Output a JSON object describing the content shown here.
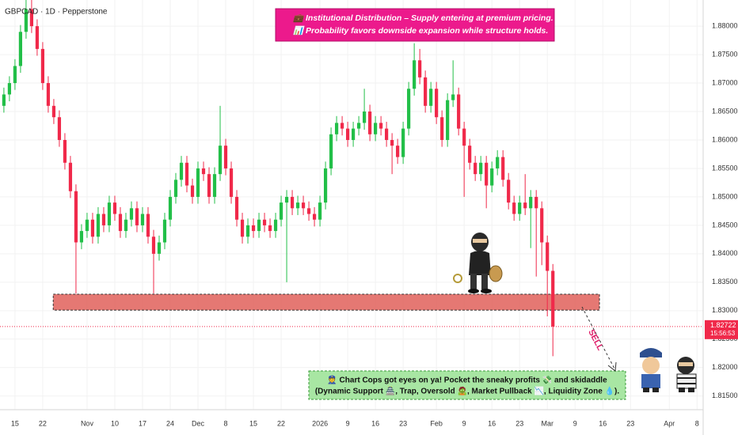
{
  "chart_data": {
    "type": "candlestick",
    "title": "GBPCAD · 1D · Pepperstone",
    "banner": [
      "💼 Institutional Distribution – Supply entering at premium pricing.",
      "📊 Probability favors downside expansion while structure holds."
    ],
    "note": [
      "👮 Chart Cops got eyes on ya! Pocket the sneaky profits 💸 and skidaddle",
      "(Dynamic Support 🏯, Trap, Oversold 🧟, Market Pullback 📉, Liquidity Zone 💧)."
    ],
    "sell_label": "SELL",
    "up_color": "#22bf48",
    "down_color": "#f0294a",
    "grid": true,
    "x": [
      -2,
      -1,
      0,
      1,
      2,
      3,
      4,
      5,
      6,
      7,
      8,
      9,
      10,
      11,
      12,
      13,
      14,
      15,
      16,
      17,
      18,
      19,
      20,
      21,
      22,
      23,
      24,
      25,
      26,
      27,
      28,
      29,
      30,
      31,
      32,
      33,
      34,
      35,
      36,
      37,
      38,
      39,
      40,
      41,
      42,
      43,
      44,
      45,
      46,
      47,
      48,
      49,
      50,
      51,
      52,
      53,
      54,
      55,
      56,
      57,
      58,
      59,
      60,
      61,
      62,
      63,
      64,
      65,
      66,
      67,
      68,
      69,
      70,
      71,
      72,
      73,
      74,
      75,
      76,
      77,
      78,
      79,
      80,
      81,
      82,
      83,
      84,
      85,
      86,
      87,
      88,
      89,
      90,
      91,
      92,
      93,
      94,
      95,
      96,
      97
    ],
    "open": [
      1.866,
      1.868,
      1.87,
      1.873,
      1.879,
      1.883,
      1.88,
      1.876,
      1.87,
      1.866,
      1.864,
      1.86,
      1.856,
      1.851,
      1.842,
      1.844,
      1.846,
      1.843,
      1.847,
      1.845,
      1.849,
      1.847,
      1.844,
      1.846,
      1.848,
      1.845,
      1.847,
      1.843,
      1.84,
      1.842,
      1.846,
      1.85,
      1.853,
      1.856,
      1.852,
      1.85,
      1.855,
      1.854,
      1.85,
      1.854,
      1.859,
      1.855,
      1.85,
      1.846,
      1.843,
      1.845,
      1.844,
      1.846,
      1.845,
      1.844,
      1.846,
      1.849,
      1.85,
      1.848,
      1.849,
      1.848,
      1.847,
      1.846,
      1.849,
      1.855,
      1.861,
      1.863,
      1.862,
      1.86,
      1.862,
      1.863,
      1.865,
      1.861,
      1.863,
      1.862,
      1.86,
      1.859,
      1.857,
      1.862,
      1.869,
      1.874,
      1.871,
      1.866,
      1.869,
      1.864,
      1.86,
      1.867,
      1.868,
      1.862,
      1.859,
      1.856,
      1.854,
      1.856,
      1.852,
      1.855,
      1.857,
      1.853,
      1.849,
      1.847,
      1.849,
      1.848,
      1.85,
      1.848,
      1.842,
      1.837
    ],
    "high": [
      1.8692,
      1.8712,
      1.8742,
      1.8802,
      1.885,
      1.8846,
      1.8812,
      1.8772,
      1.8712,
      1.8672,
      1.8652,
      1.8612,
      1.8572,
      1.8522,
      1.8452,
      1.8472,
      1.8472,
      1.8482,
      1.8482,
      1.8502,
      1.8502,
      1.8482,
      1.8472,
      1.8492,
      1.8492,
      1.8482,
      1.8482,
      1.8442,
      1.8432,
      1.8472,
      1.8512,
      1.8542,
      1.8572,
      1.8572,
      1.8532,
      1.8562,
      1.8562,
      1.8552,
      1.8552,
      1.866,
      1.8602,
      1.8562,
      1.8512,
      1.8472,
      1.8462,
      1.8462,
      1.8472,
      1.8472,
      1.8462,
      1.8472,
      1.8502,
      1.8512,
      1.8512,
      1.8502,
      1.8502,
      1.8492,
      1.8482,
      1.8502,
      1.8562,
      1.8622,
      1.8642,
      1.8642,
      1.8632,
      1.8632,
      1.8642,
      1.869,
      1.8662,
      1.8642,
      1.8642,
      1.8632,
      1.8612,
      1.8602,
      1.8632,
      1.8702,
      1.877,
      1.876,
      1.8722,
      1.8702,
      1.8702,
      1.8652,
      1.8682,
      1.874,
      1.8692,
      1.8632,
      1.8602,
      1.8572,
      1.8572,
      1.8572,
      1.8562,
      1.8582,
      1.8582,
      1.8542,
      1.8502,
      1.8502,
      1.854,
      1.8512,
      1.8512,
      1.8492,
      1.8432,
      1.8382
    ],
    "low": [
      1.8648,
      1.8668,
      1.8688,
      1.8718,
      1.8778,
      1.8788,
      1.8748,
      1.8688,
      1.8648,
      1.8628,
      1.8588,
      1.8548,
      1.8498,
      1.833,
      1.8408,
      1.8428,
      1.8418,
      1.8418,
      1.8438,
      1.8438,
      1.8458,
      1.8428,
      1.8428,
      1.8448,
      1.8438,
      1.8438,
      1.8418,
      1.833,
      1.8388,
      1.8408,
      1.8448,
      1.8488,
      1.8518,
      1.8508,
      1.8488,
      1.8488,
      1.8528,
      1.8488,
      1.8488,
      1.8528,
      1.8538,
      1.8488,
      1.8448,
      1.8418,
      1.8418,
      1.8428,
      1.8428,
      1.8438,
      1.8428,
      1.8428,
      1.8448,
      1.835,
      1.8468,
      1.8468,
      1.8468,
      1.8458,
      1.8448,
      1.8448,
      1.8478,
      1.8538,
      1.8598,
      1.8608,
      1.8588,
      1.8588,
      1.8608,
      1.8618,
      1.8598,
      1.8598,
      1.8608,
      1.8588,
      1.854,
      1.8558,
      1.8558,
      1.8608,
      1.8678,
      1.8698,
      1.8648,
      1.8648,
      1.8628,
      1.8588,
      1.8588,
      1.8658,
      1.8608,
      1.85,
      1.8548,
      1.8528,
      1.8528,
      1.848,
      1.8508,
      1.8538,
      1.8518,
      1.8478,
      1.8458,
      1.8458,
      1.8468,
      1.841,
      1.836,
      1.838,
      1.829,
      1.822
    ],
    "close": [
      1.868,
      1.87,
      1.873,
      1.879,
      1.883,
      1.88,
      1.876,
      1.87,
      1.866,
      1.864,
      1.86,
      1.856,
      1.851,
      1.842,
      1.844,
      1.846,
      1.843,
      1.847,
      1.845,
      1.849,
      1.847,
      1.844,
      1.846,
      1.848,
      1.845,
      1.847,
      1.843,
      1.84,
      1.842,
      1.846,
      1.85,
      1.853,
      1.856,
      1.852,
      1.85,
      1.855,
      1.854,
      1.85,
      1.854,
      1.859,
      1.855,
      1.85,
      1.846,
      1.843,
      1.845,
      1.844,
      1.846,
      1.845,
      1.844,
      1.846,
      1.849,
      1.85,
      1.848,
      1.849,
      1.848,
      1.847,
      1.846,
      1.849,
      1.855,
      1.861,
      1.863,
      1.862,
      1.86,
      1.862,
      1.863,
      1.865,
      1.861,
      1.863,
      1.862,
      1.86,
      1.859,
      1.857,
      1.862,
      1.869,
      1.874,
      1.871,
      1.866,
      1.869,
      1.864,
      1.86,
      1.867,
      1.868,
      1.862,
      1.859,
      1.856,
      1.854,
      1.856,
      1.852,
      1.855,
      1.857,
      1.853,
      1.849,
      1.847,
      1.849,
      1.848,
      1.85,
      1.848,
      1.842,
      1.837,
      1.82722
    ],
    "xlim": [
      -2.7,
      124.1
    ],
    "xticks": [
      {
        "value": 0,
        "label": "15"
      },
      {
        "value": 5,
        "label": "22"
      },
      {
        "value": 13,
        "label": "Nov"
      },
      {
        "value": 18,
        "label": "10"
      },
      {
        "value": 23,
        "label": "17"
      },
      {
        "value": 28,
        "label": "24"
      },
      {
        "value": 33,
        "label": "Dec"
      },
      {
        "value": 38,
        "label": "8"
      },
      {
        "value": 43,
        "label": "15"
      },
      {
        "value": 48,
        "label": "22"
      },
      {
        "value": 55,
        "label": "2026"
      },
      {
        "value": 60,
        "label": "9"
      },
      {
        "value": 65,
        "label": "16"
      },
      {
        "value": 70,
        "label": "23"
      },
      {
        "value": 76,
        "label": "Feb"
      },
      {
        "value": 81,
        "label": "9"
      },
      {
        "value": 86,
        "label": "16"
      },
      {
        "value": 91,
        "label": "23"
      },
      {
        "value": 96,
        "label": "Mar"
      },
      {
        "value": 101,
        "label": "9"
      },
      {
        "value": 106,
        "label": "16"
      },
      {
        "value": 111,
        "label": "23"
      },
      {
        "value": 118,
        "label": "Apr"
      },
      {
        "value": 123,
        "label": "8"
      }
    ],
    "ylim": [
      1.8126,
      1.8846
    ],
    "yticks": [
      {
        "value": 1.815,
        "label": "1.81500"
      },
      {
        "value": 1.82,
        "label": "1.82000"
      },
      {
        "value": 1.825,
        "label": "1.82500"
      },
      {
        "value": 1.83,
        "label": "1.83000"
      },
      {
        "value": 1.835,
        "label": "1.83500"
      },
      {
        "value": 1.84,
        "label": "1.84000"
      },
      {
        "value": 1.845,
        "label": "1.84500"
      },
      {
        "value": 1.85,
        "label": "1.85000"
      },
      {
        "value": 1.855,
        "label": "1.85500"
      },
      {
        "value": 1.86,
        "label": "1.86000"
      },
      {
        "value": 1.865,
        "label": "1.86500"
      },
      {
        "value": 1.87,
        "label": "1.87000"
      },
      {
        "value": 1.875,
        "label": "1.87500"
      },
      {
        "value": 1.88,
        "label": "1.88000"
      }
    ],
    "zone": {
      "x": [
        6.9,
        105.4
      ],
      "low": 1.8301,
      "high": 1.8329,
      "color": "#e0605a"
    },
    "last_price": 1.82722,
    "countdown": "15:56:53"
  }
}
